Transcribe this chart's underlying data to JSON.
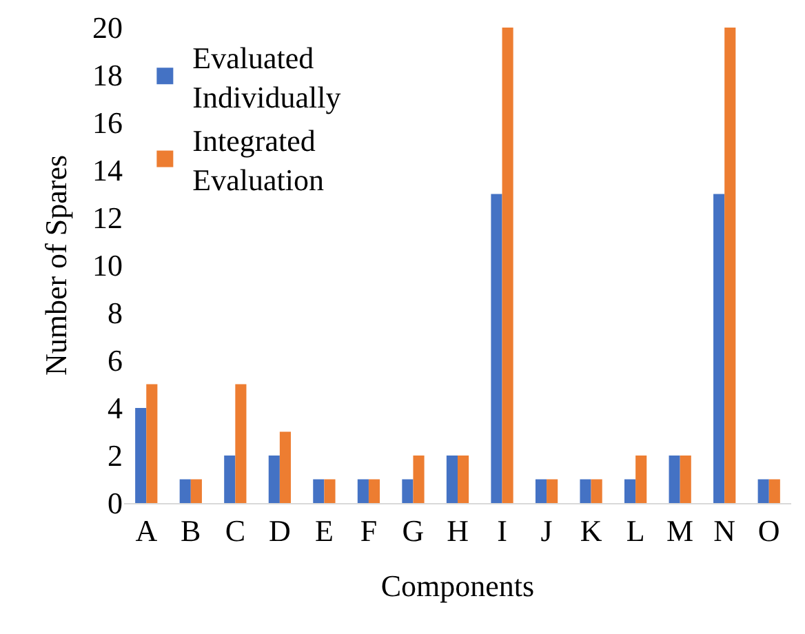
{
  "chart_data": {
    "type": "bar",
    "xlabel": "Components",
    "ylabel": "Number of Spares",
    "categories": [
      "A",
      "B",
      "C",
      "D",
      "E",
      "F",
      "G",
      "H",
      "I",
      "J",
      "K",
      "L",
      "M",
      "N",
      "O"
    ],
    "series": [
      {
        "name": "Evaluated Individually",
        "color": "#4472c4",
        "values": [
          4,
          1,
          2,
          2,
          1,
          1,
          1,
          2,
          13,
          1,
          1,
          1,
          2,
          13,
          1
        ]
      },
      {
        "name": "Integrated Evaluation",
        "color": "#ed7d31",
        "values": [
          5,
          1,
          5,
          3,
          1,
          1,
          2,
          2,
          20,
          1,
          1,
          2,
          2,
          20,
          1
        ]
      }
    ],
    "ylim": [
      0,
      20
    ],
    "yticks": [
      0,
      2,
      4,
      6,
      8,
      10,
      12,
      14,
      16,
      18,
      20
    ],
    "grid": false,
    "legend": "top left"
  }
}
